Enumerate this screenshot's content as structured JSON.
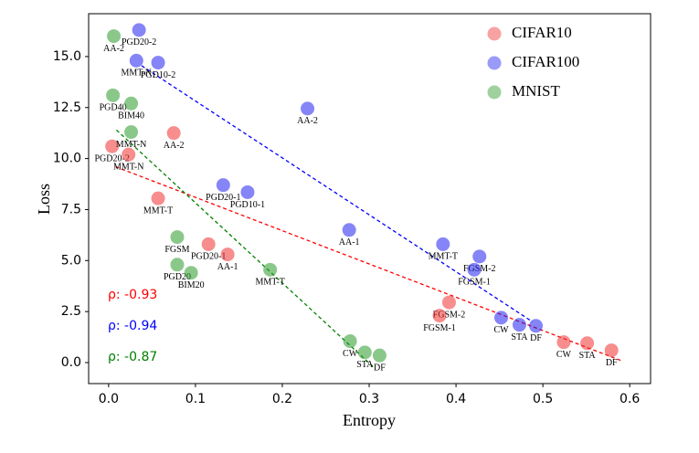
{
  "chart_data": {
    "type": "scatter",
    "xlabel": "Entropy",
    "ylabel": "Loss",
    "xlim": [
      -0.023,
      0.624
    ],
    "ylim": [
      -1.03,
      17.1
    ],
    "xticks": [
      {
        "value": 0,
        "label": "0.0"
      },
      0.1,
      0.2,
      0.3,
      0.4,
      0.5,
      0.6
    ],
    "yticks": [
      {
        "value": 0,
        "label": "0.0"
      },
      2.5,
      {
        "value": 5,
        "label": "5.0"
      },
      {
        "value": 7.5,
        "label": "7.5"
      },
      {
        "value": 10,
        "label": "10.0"
      },
      12.5,
      {
        "value": 15,
        "label": "15.0"
      }
    ],
    "legend": "upper right",
    "series": [
      {
        "name": "CIFAR10",
        "color": "#f03030",
        "text_color": "#ff0000",
        "x": [
          0.004,
          0.023,
          0.075,
          0.057,
          0.115,
          0.137,
          0.392,
          0.381,
          0.524,
          0.551,
          0.579
        ],
        "values": [
          10.6,
          10.2,
          11.25,
          8.05,
          5.8,
          5.3,
          2.95,
          2.3,
          1.0,
          0.95,
          0.6
        ],
        "labels": [
          "PGD20-2",
          "MMT-N",
          "AA-2",
          "MMT-T",
          "PGD20-1",
          "AA-1",
          "FGSM-2",
          "FGSM-1",
          "CW",
          "STA",
          "DF"
        ],
        "trend": {
          "x": [
            0.008,
            0.59
          ],
          "y": [
            9.6,
            0.1
          ]
        },
        "correlation": "ρ: -0.93"
      },
      {
        "name": "CIFAR100",
        "color": "#2020f0",
        "text_color": "#0000ff",
        "x": [
          0.035,
          0.032,
          0.057,
          0.229,
          0.132,
          0.16,
          0.277,
          0.385,
          0.427,
          0.421,
          0.452,
          0.473,
          0.492
        ],
        "values": [
          16.3,
          14.8,
          14.7,
          12.45,
          8.7,
          8.35,
          6.5,
          5.8,
          5.2,
          4.55,
          2.2,
          1.85,
          1.8
        ],
        "labels": [
          "PGD20-2",
          "MMT-N",
          "PGD10-2",
          "AA-2",
          "PGD20-1",
          "PGD10-1",
          "AA-1",
          "MMT-T",
          "FGSM-2",
          "FGSM-1",
          "CW",
          "STA",
          "DF"
        ],
        "trend": {
          "x": [
            0.038,
            0.488
          ],
          "y": [
            14.55,
            2.0
          ]
        },
        "correlation": "ρ: -0.94"
      },
      {
        "name": "MNIST",
        "color": "#2a9a2a",
        "text_color": "#008000",
        "x": [
          0.006,
          0.005,
          0.026,
          0.026,
          0.079,
          0.079,
          0.095,
          0.186,
          0.278,
          0.295,
          0.312
        ],
        "values": [
          16.0,
          13.1,
          12.7,
          11.3,
          6.15,
          4.8,
          4.4,
          4.55,
          1.05,
          0.5,
          0.35
        ],
        "labels": [
          "AA-2",
          "PGD40",
          "BIM40",
          "MMT-N",
          "FGSM",
          "PGD20",
          "BIM20",
          "MMT-T",
          "CW",
          "STA",
          "DF"
        ],
        "trend": {
          "x": [
            0.009,
            0.307
          ],
          "y": [
            11.4,
            -0.3
          ]
        },
        "correlation": "ρ: -0.87"
      }
    ]
  }
}
